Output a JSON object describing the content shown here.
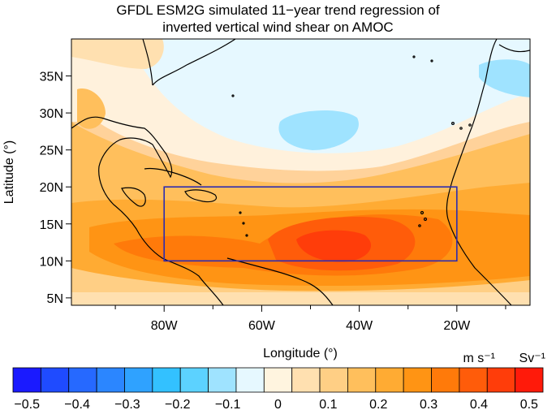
{
  "title_line1": "GFDL ESM2G simulated 11−year trend regression of",
  "title_line2": "inverted vertical wind shear on AMOC",
  "map": {
    "xlabel": "Longitude (°)",
    "ylabel": "Latitude (°)",
    "lon_range": [
      -99,
      -5
    ],
    "lat_range": [
      4,
      40
    ],
    "lon_ticks": [
      "80W",
      "60W",
      "40W",
      "20W"
    ],
    "lat_ticks": [
      "35N",
      "30N",
      "25N",
      "20N",
      "15N",
      "10N",
      "5N"
    ],
    "box_region": {
      "lon": [
        -80,
        -20
      ],
      "lat": [
        10,
        20
      ]
    },
    "box_color": "#2b2bb0"
  },
  "colorbar": {
    "units_left": "m s⁻¹",
    "units_right": "Sv⁻¹",
    "ticks": [
      "−0.5",
      "−0.4",
      "−0.3",
      "−0.2",
      "−0.1",
      "0",
      "0.1",
      "0.2",
      "0.3",
      "0.4",
      "0.5"
    ],
    "colors": [
      "#1a1aff",
      "#1f4bff",
      "#2669ff",
      "#2b86ff",
      "#2fa2ff",
      "#33c1ff",
      "#5cd2ff",
      "#9fe3ff",
      "#e6f8ff",
      "#fff4df",
      "#ffe0b0",
      "#ffcf85",
      "#ffbf5c",
      "#ffab33",
      "#ff9414",
      "#ff7a0a",
      "#ff5c0a",
      "#ff3d0a",
      "#ff1a0a"
    ]
  }
}
